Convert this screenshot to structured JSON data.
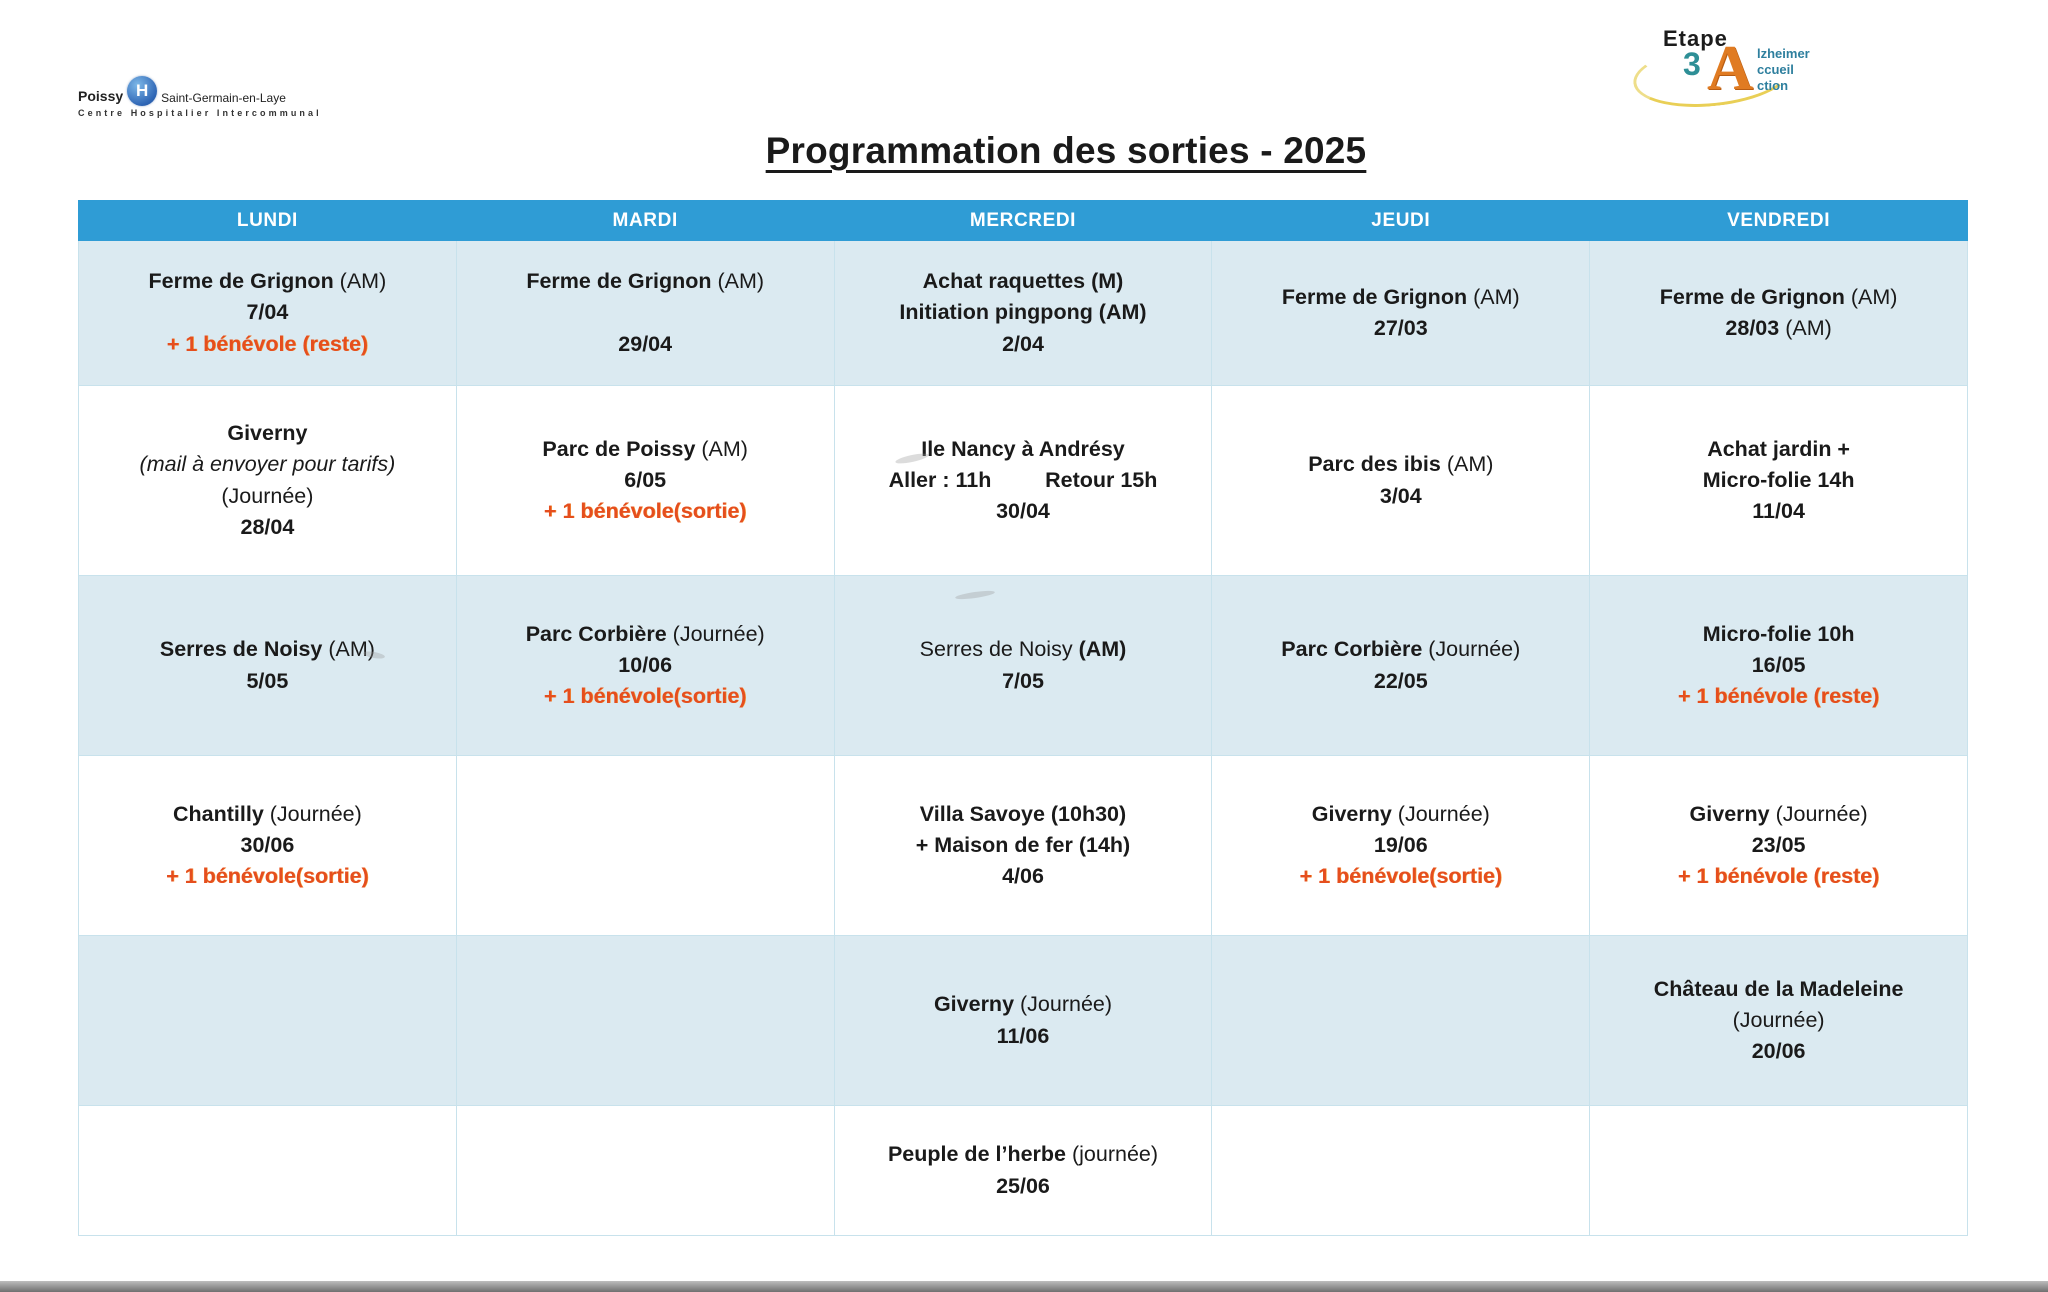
{
  "title": "Programmation des sorties - 2025",
  "logos": {
    "hospital": {
      "city": "Poissy",
      "mark_letter": "H",
      "city2": "Saint-Germain-en-Laye",
      "subtitle": "Centre Hospitalier Intercommunal"
    },
    "etape3a": {
      "word": "Etape",
      "digit": "3",
      "letter": "A",
      "lines": [
        "lzheimer",
        "ccueil",
        "ction"
      ]
    }
  },
  "colors": {
    "header_blue": "#2f9cd5",
    "row_light_blue": "#dbeaf1",
    "note_orange": "#e54e1e",
    "logo_orange": "#e07b22",
    "logo_teal": "#2e7f9e"
  },
  "table": {
    "headers": [
      "LUNDI",
      "MARDI",
      "MERCREDI",
      "JEUDI",
      "VENDREDI"
    ],
    "rows": [
      [
        [
          [
            [
              "Ferme de Grignon",
              "b"
            ],
            [
              " (AM)",
              "r"
            ]
          ],
          [
            [
              "7/04",
              "b"
            ]
          ],
          [
            [
              "+ 1 bénévole (reste)",
              "o"
            ]
          ]
        ],
        [
          [
            [
              "Ferme de Grignon",
              "b"
            ],
            [
              " (AM)",
              "r"
            ]
          ],
          [
            [
              " ",
              "r"
            ]
          ],
          [
            [
              "29/04",
              "b"
            ]
          ]
        ],
        [
          [
            [
              "Achat raquettes (M)",
              "b"
            ]
          ],
          [
            [
              "Initiation pingpong (AM)",
              "b"
            ]
          ],
          [
            [
              "2/04",
              "b"
            ]
          ]
        ],
        [
          [
            [
              "Ferme de Grignon",
              "b"
            ],
            [
              " (AM)",
              "r"
            ]
          ],
          [
            [
              "27/03",
              "b"
            ]
          ]
        ],
        [
          [
            [
              "Ferme de Grignon",
              "b"
            ],
            [
              " (AM)",
              "r"
            ]
          ],
          [
            [
              "28/03",
              "b"
            ],
            [
              " (AM)",
              "r"
            ]
          ]
        ]
      ],
      [
        [
          [
            [
              "Giverny",
              "b"
            ]
          ],
          [
            [
              "(mail à envoyer pour tarifs)",
              "i"
            ]
          ],
          [
            [
              "(Journée)",
              "r"
            ]
          ],
          [
            [
              "28/04",
              "b"
            ]
          ]
        ],
        [
          [
            [
              "Parc de Poissy",
              "b"
            ],
            [
              " (AM)",
              "r"
            ]
          ],
          [
            [
              "6/05",
              "b"
            ]
          ],
          [
            [
              "+ 1 bénévole(sortie)",
              "o"
            ]
          ]
        ],
        [
          [
            [
              "Ile Nancy à Andrésy",
              "b"
            ]
          ],
          [
            [
              "Aller : 11h         Retour 15h",
              "b"
            ]
          ],
          [
            [
              "30/04",
              "b"
            ]
          ]
        ],
        [
          [
            [
              "Parc des ibis",
              "b"
            ],
            [
              " (AM)",
              "r"
            ]
          ],
          [
            [
              "3/04",
              "b"
            ]
          ]
        ],
        [
          [
            [
              "Achat jardin +",
              "b"
            ]
          ],
          [
            [
              "Micro-folie 14h",
              "b"
            ]
          ],
          [
            [
              "11/04",
              "b"
            ]
          ]
        ]
      ],
      [
        [
          [
            [
              "Serres de Noisy",
              "b"
            ],
            [
              " (AM)",
              "r"
            ]
          ],
          [
            [
              "5/05",
              "b"
            ]
          ]
        ],
        [
          [
            [
              "Parc Corbière",
              "b"
            ],
            [
              " (Journée)",
              "r"
            ]
          ],
          [
            [
              "10/06",
              "b"
            ]
          ],
          [
            [
              "+ 1 bénévole(sortie)",
              "o"
            ]
          ]
        ],
        [
          [
            [
              "Serres de Noisy",
              "r"
            ],
            [
              " (AM)",
              "b"
            ]
          ],
          [
            [
              "7/05",
              "b"
            ]
          ]
        ],
        [
          [
            [
              "Parc Corbière",
              "b"
            ],
            [
              " (Journée)",
              "r"
            ]
          ],
          [
            [
              "22/05",
              "b"
            ]
          ]
        ],
        [
          [
            [
              "Micro-folie 10h",
              "b"
            ]
          ],
          [
            [
              "16/05",
              "b"
            ]
          ],
          [
            [
              "+ 1 bénévole (reste)",
              "o"
            ]
          ]
        ]
      ],
      [
        [
          [
            [
              "Chantilly",
              "b"
            ],
            [
              " (Journée)",
              "r"
            ]
          ],
          [
            [
              "30/06",
              "b"
            ]
          ],
          [
            [
              "+ 1 bénévole(sortie)",
              "o"
            ]
          ]
        ],
        [],
        [
          [
            [
              "Villa Savoye (10h30)",
              "b"
            ]
          ],
          [
            [
              "+ Maison de fer (14h)",
              "b"
            ]
          ],
          [
            [
              "4/06",
              "b"
            ]
          ]
        ],
        [
          [
            [
              "Giverny",
              "b"
            ],
            [
              " (Journée)",
              "r"
            ]
          ],
          [
            [
              "19/06",
              "b"
            ]
          ],
          [
            [
              "+ 1 bénévole(sortie)",
              "o"
            ]
          ]
        ],
        [
          [
            [
              "Giverny",
              "b"
            ],
            [
              " (Journée)",
              "r"
            ]
          ],
          [
            [
              "23/05",
              "b"
            ]
          ],
          [
            [
              "+ 1 bénévole (reste)",
              "o"
            ]
          ]
        ]
      ],
      [
        [],
        [],
        [
          [
            [
              "Giverny",
              "b"
            ],
            [
              " (Journée)",
              "r"
            ]
          ],
          [
            [
              "11/06",
              "b"
            ]
          ]
        ],
        [],
        [
          [
            [
              "Château de la Madeleine",
              "b"
            ]
          ],
          [
            [
              "(Journée)",
              "r"
            ]
          ],
          [
            [
              "20/06",
              "b"
            ]
          ]
        ]
      ],
      [
        [],
        [],
        [
          [
            [
              "Peuple de l’herbe",
              "b"
            ],
            [
              " (journée)",
              "r"
            ]
          ],
          [
            [
              "25/06",
              "b"
            ]
          ]
        ],
        [],
        []
      ]
    ]
  }
}
